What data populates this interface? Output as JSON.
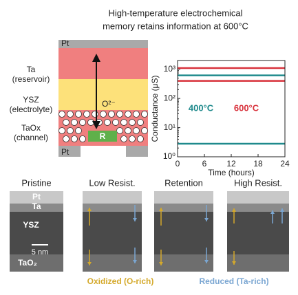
{
  "title": [
    "High-temperature electrochemical",
    "memory retains information at 600°C"
  ],
  "diagram": {
    "top_electrode": "Pt",
    "bottom_electrode": "Pt",
    "ion": "O²⁻",
    "resistor": "R",
    "layers": [
      {
        "name": "Ta",
        "role": "(reservoir)"
      },
      {
        "name": "YSZ",
        "role": "(electrolyte)"
      },
      {
        "name": "TaOx",
        "role": "(channel)"
      }
    ]
  },
  "chart_data": {
    "type": "line",
    "log_y": true,
    "x_label": "Time (hours)",
    "y_label": "Conductance (μS)",
    "x": [
      0,
      24
    ],
    "xlim": [
      0,
      24
    ],
    "xticks": [
      0,
      6,
      12,
      18,
      24
    ],
    "ylim": [
      1,
      2000
    ],
    "yticks": [
      {
        "value": 1,
        "label": "10⁰"
      },
      {
        "value": 10,
        "label": "10¹"
      },
      {
        "value": 100,
        "label": "10²"
      },
      {
        "value": 1000,
        "label": "10³"
      }
    ],
    "series": [
      {
        "name": "400°C",
        "color": "#1f8a8c",
        "lines": [
          [
            620,
            620
          ],
          [
            2.8,
            2.8
          ]
        ]
      },
      {
        "name": "600°C",
        "color": "#d8323c",
        "lines": [
          [
            1100,
            1100
          ],
          [
            400,
            400
          ]
        ]
      }
    ]
  },
  "tem": {
    "panels": [
      "Pristine",
      "Low Resist.",
      "Retention",
      "High Resist."
    ],
    "layer_labels": [
      "Pt",
      "Ta",
      "YSZ",
      "TaO₂"
    ],
    "scale_bar": "5 nm",
    "legend": [
      {
        "text": "Oxidized (O-rich)",
        "color": "#d4a92b"
      },
      {
        "text": "Reduced (Ta-rich)",
        "color": "#7aa6d2"
      }
    ]
  }
}
